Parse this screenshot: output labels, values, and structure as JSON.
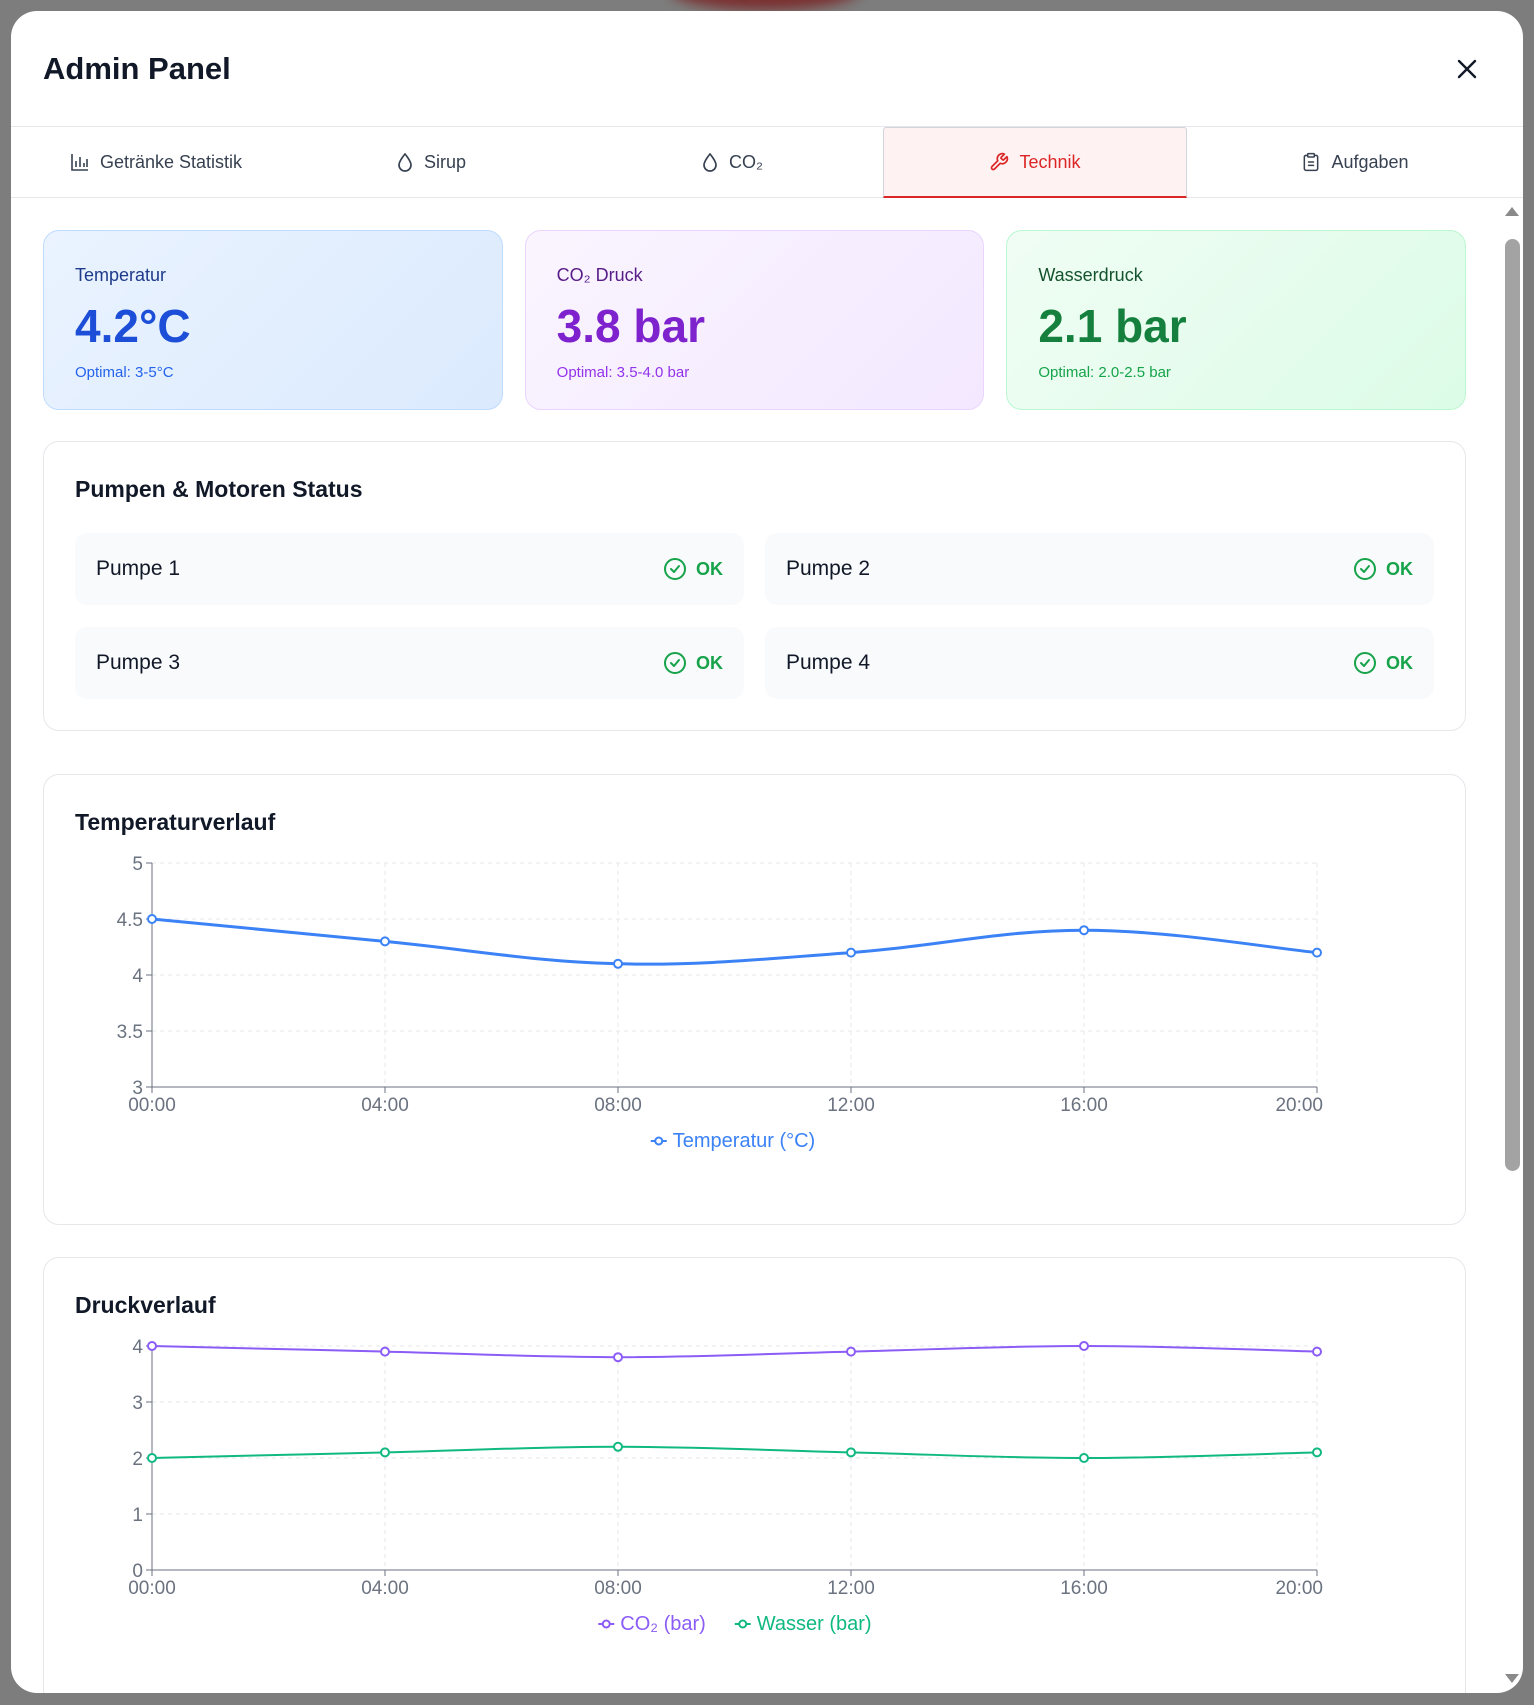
{
  "header": {
    "title": "Admin Panel",
    "close_icon": "close-icon"
  },
  "tabs": [
    {
      "label": "Getränke Statistik",
      "icon": "bar-chart-icon",
      "active": false
    },
    {
      "label": "Sirup",
      "icon": "droplet-icon",
      "active": false
    },
    {
      "label": "CO₂",
      "icon": "droplet-icon",
      "active": false
    },
    {
      "label": "Technik",
      "icon": "wrench-icon",
      "active": true
    },
    {
      "label": "Aufgaben",
      "icon": "clipboard-icon",
      "active": false
    }
  ],
  "metrics": {
    "temperature": {
      "label": "Temperatur",
      "value": "4.2°C",
      "optimal": "Optimal: 3-5°C"
    },
    "co2": {
      "label": "CO₂ Druck",
      "value": "3.8 bar",
      "optimal": "Optimal: 3.5-4.0 bar"
    },
    "water": {
      "label": "Wasserdruck",
      "value": "2.1 bar",
      "optimal": "Optimal: 2.0-2.5 bar"
    }
  },
  "pumps": {
    "title": "Pumpen & Motoren Status",
    "items": [
      {
        "name": "Pumpe 1",
        "status": "OK"
      },
      {
        "name": "Pumpe 2",
        "status": "OK"
      },
      {
        "name": "Pumpe 3",
        "status": "OK"
      },
      {
        "name": "Pumpe 4",
        "status": "OK"
      }
    ]
  },
  "colors": {
    "temp_line": "#3b82f6",
    "co2_line": "#8b5cf6",
    "water_line": "#10b981",
    "active_tab": "#dc2626",
    "ok": "#16a34a"
  },
  "chart_data": [
    {
      "type": "line",
      "title": "Temperaturverlauf",
      "categories": [
        "00:00",
        "04:00",
        "08:00",
        "12:00",
        "16:00",
        "20:00"
      ],
      "series": [
        {
          "name": "Temperatur (°C)",
          "values": [
            4.5,
            4.3,
            4.1,
            4.2,
            4.4,
            4.2
          ],
          "color": "#3b82f6"
        }
      ],
      "yticks": [
        "3",
        "3.5",
        "4",
        "4.5",
        "5"
      ],
      "ylim": [
        3,
        5
      ],
      "grid": true,
      "legend": "bottom-center"
    },
    {
      "type": "line",
      "title": "Druckverlauf",
      "categories": [
        "00:00",
        "04:00",
        "08:00",
        "12:00",
        "16:00",
        "20:00"
      ],
      "series": [
        {
          "name": "CO₂ (bar)",
          "values": [
            4.0,
            3.9,
            3.8,
            3.9,
            4.0,
            3.9
          ],
          "color": "#8b5cf6"
        },
        {
          "name": "Wasser (bar)",
          "values": [
            2.0,
            2.1,
            2.2,
            2.1,
            2.0,
            2.1
          ],
          "color": "#10b981"
        }
      ],
      "yticks": [
        "0",
        "1",
        "2",
        "3",
        "4"
      ],
      "ylim": [
        0,
        4
      ],
      "grid": true,
      "legend": "bottom-center"
    }
  ]
}
